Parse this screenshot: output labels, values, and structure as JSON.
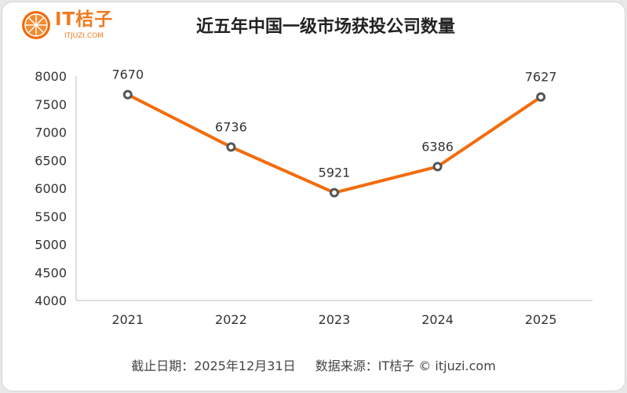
{
  "logo": {
    "name": "IT桔子",
    "sub": "ITJUZI.COM"
  },
  "chart_data": {
    "type": "line",
    "title": "近五年中国一级市场获投公司数量",
    "categories": [
      "2021",
      "2022",
      "2023",
      "2024",
      "2025"
    ],
    "values": [
      7670,
      6736,
      5921,
      6386,
      7627
    ],
    "yticks": [
      4000,
      4500,
      5000,
      5500,
      6000,
      6500,
      7000,
      7500,
      8000
    ],
    "ylim": [
      4000,
      8000
    ],
    "xlabel": "",
    "ylabel": "",
    "grid": false,
    "line_color": "#f26c0d",
    "marker_color": "#555555"
  },
  "footer": {
    "date": "截止日期：2025年12月31日",
    "source": "数据来源：IT桔子 © itjuzi.com"
  }
}
